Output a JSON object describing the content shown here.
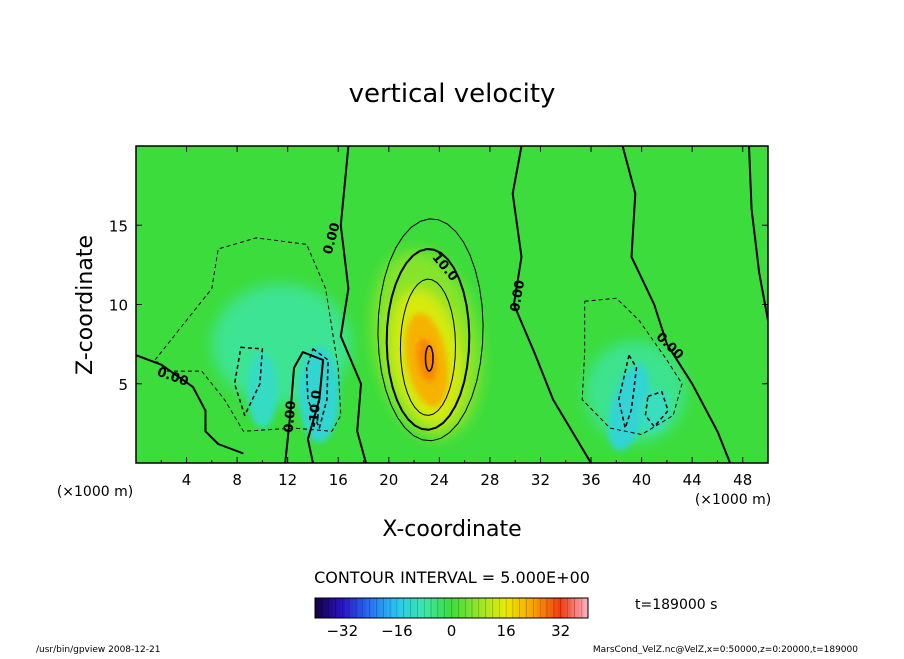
{
  "chart_data": {
    "type": "heatmap",
    "title": "vertical velocity",
    "xlabel": "X-coordinate",
    "ylabel": "Z-coordinate",
    "x_unit": "(×1000 m)",
    "y_unit": "(×1000 m)",
    "xlim": [
      0,
      50
    ],
    "ylim": [
      0,
      20
    ],
    "x_ticks": [
      4,
      8,
      12,
      16,
      20,
      24,
      28,
      32,
      36,
      40,
      44,
      48
    ],
    "y_ticks": [
      5,
      10,
      15
    ],
    "contour_interval_text": "CONTOUR INTERVAL = 5.000E+00",
    "time_text": "t=189000 s",
    "colorbar": {
      "min": -40,
      "max": 40,
      "ticks": [
        -32,
        -16,
        0,
        16,
        32
      ]
    },
    "contour_labels": [
      {
        "text": "0.00",
        "x": 15.8,
        "y": 14.1,
        "angle": -75
      },
      {
        "text": "10.0",
        "x": 24.2,
        "y": 12.2,
        "angle": 50
      },
      {
        "text": "0.00",
        "x": 30.5,
        "y": 10.5,
        "angle": -80
      },
      {
        "text": "0.00",
        "x": 2.8,
        "y": 5.2,
        "angle": 20
      },
      {
        "text": "0.00",
        "x": 12.5,
        "y": 2.9,
        "angle": -85
      },
      {
        "text": "-10.0",
        "x": 14.5,
        "y": 3.4,
        "angle": -85
      },
      {
        "text": "0.00",
        "x": 42.0,
        "y": 7.2,
        "angle": 45
      }
    ],
    "features": [
      {
        "name": "updraft",
        "x": 23,
        "z": 6.5,
        "peak": 26
      },
      {
        "name": "downdraft-left",
        "x": 14.5,
        "z": 4,
        "peak": -18
      },
      {
        "name": "downdraft-right",
        "x": 39,
        "z": 3.5,
        "peak": -17
      }
    ]
  },
  "footer": {
    "left": "/usr/bin/gpview   2008-12-21",
    "right": "MarsCond_VelZ.nc@VelZ,x=0:50000,z=0:20000,t=189000"
  }
}
